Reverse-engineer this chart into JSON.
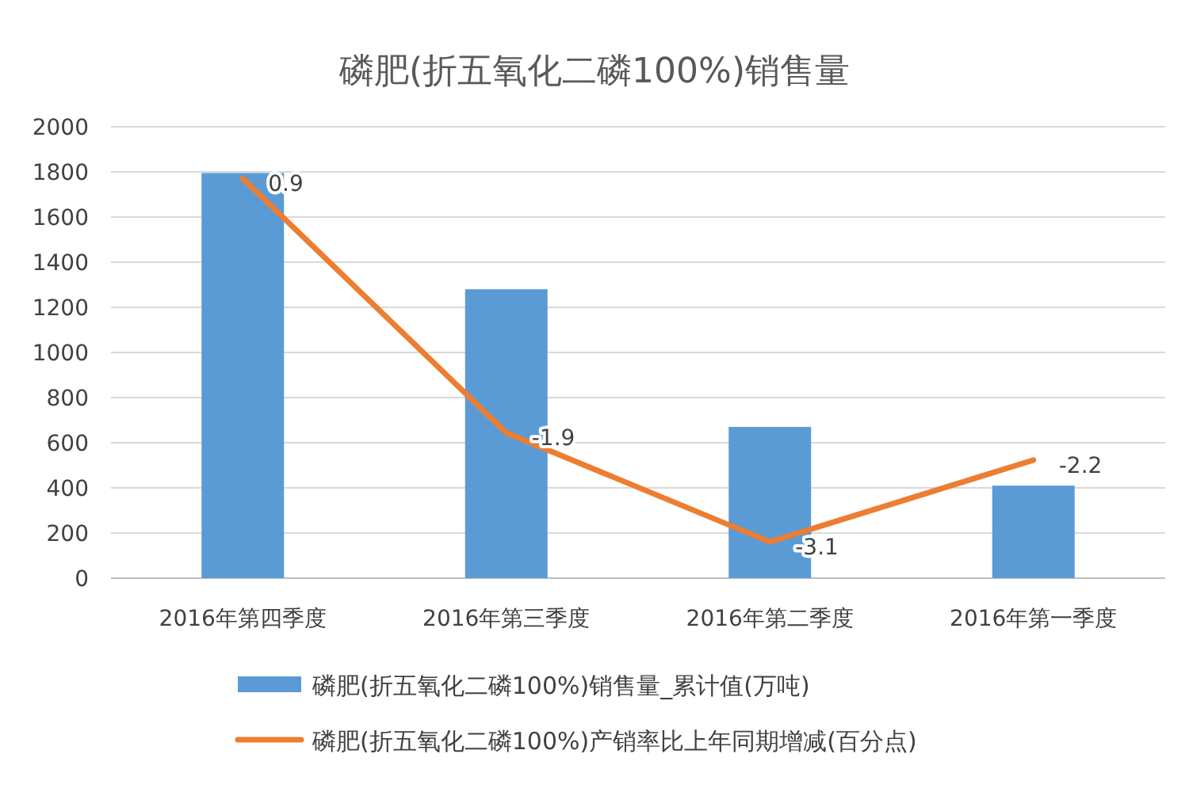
{
  "chart_data": {
    "type": "bar",
    "title": "磷肥(折五氧化二磷100%)销售量",
    "categories": [
      "2016年第四季度",
      "2016年第三季度",
      "2016年第二季度",
      "2016年第一季度"
    ],
    "series": [
      {
        "name": "磷肥(折五氧化二磷100%)销售量_累计值(万吨)",
        "color": "#5b9bd5",
        "values": [
          1795,
          1280,
          670,
          410
        ]
      },
      {
        "name": "磷肥(折五氧化二磷100%)产销率比上年同期增减(百分点)",
        "type": "line",
        "axis": "y2",
        "color": "#ed7d31",
        "values": [
          0.9,
          -1.9,
          -3.1,
          -2.2
        ],
        "value_labels": [
          "0.9",
          "-1.9",
          "-3.1",
          "-2.2"
        ]
      }
    ],
    "ylim": [
      0,
      2000
    ],
    "yticks": [
      0,
      200,
      400,
      600,
      800,
      1000,
      1200,
      1400,
      1600,
      1800,
      2000
    ],
    "y2lim": [
      -3.5,
      1.47
    ],
    "grid": "y",
    "legend": "bottom"
  }
}
